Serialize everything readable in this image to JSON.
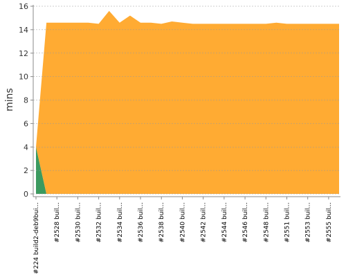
{
  "chart_data": {
    "type": "stacked_area",
    "y_label": "mins",
    "categories": [
      "#224 build2-deb9bui...",
      null,
      "#2528 buil...",
      null,
      "#2530 buil...",
      null,
      "#2532 buil...",
      null,
      "#2534 buil...",
      null,
      "#2536 buil...",
      null,
      "#2538 buil...",
      null,
      "#2540 buil...",
      null,
      "#2542 buil...",
      null,
      "#2544 buil...",
      null,
      "#2546 buil...",
      null,
      "#2548 buil...",
      null,
      "#2551 buil...",
      null,
      "#2553 buil...",
      null,
      "#2555 buil...",
      null
    ],
    "series": [
      {
        "color": "#3b9a5f",
        "values": [
          4,
          0,
          0,
          0,
          0,
          0,
          0,
          0,
          0,
          0,
          0,
          0,
          0,
          0,
          0,
          0,
          0,
          0,
          0,
          0,
          0,
          0,
          0,
          0,
          0,
          0,
          0,
          0,
          0,
          0
        ]
      },
      {
        "color": "#ffab33",
        "values": [
          0,
          14.6,
          14.6,
          14.6,
          14.6,
          14.6,
          14.5,
          15.6,
          14.6,
          15.2,
          14.6,
          14.6,
          14.5,
          14.7,
          14.6,
          14.5,
          14.5,
          14.5,
          14.5,
          14.5,
          14.5,
          14.5,
          14.5,
          14.6,
          14.5,
          14.5,
          14.5,
          14.5,
          14.5,
          14.5
        ]
      }
    ],
    "ylim": [
      0,
      16
    ],
    "yticks": [
      0,
      2,
      4,
      6,
      8,
      10,
      12,
      14,
      16
    ],
    "grid": true
  }
}
